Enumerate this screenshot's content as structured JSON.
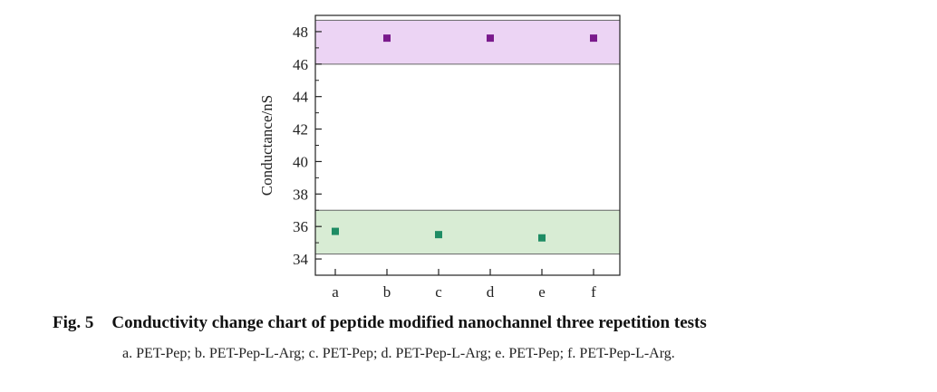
{
  "figure": {
    "number": "Fig. 5",
    "title": "Conductivity change chart of peptide modified nanochannel three repetition tests",
    "caption": "a. PET-Pep; b. PET-Pep-L-Arg; c. PET-Pep; d. PET-Pep-L-Arg; e. PET-Pep; f. PET-Pep-L-Arg."
  },
  "chart_data": {
    "type": "scatter",
    "title": "",
    "xlabel": "",
    "ylabel": "Conductance/nS",
    "categories": [
      "a",
      "b",
      "c",
      "d",
      "e",
      "f"
    ],
    "ylim": [
      33,
      49
    ],
    "yticks": [
      34,
      36,
      38,
      40,
      42,
      44,
      46,
      48
    ],
    "grid": false,
    "legend": "none",
    "bands": [
      {
        "y0": 34.3,
        "y1": 37.0,
        "color": "#d8ecd4",
        "edge": "#666666"
      },
      {
        "y0": 46.0,
        "y1": 48.7,
        "color": "#ecd4f4",
        "edge": "#666666"
      }
    ],
    "points": [
      {
        "x": "a",
        "y": 35.7,
        "color": "#1e8c64"
      },
      {
        "x": "b",
        "y": 47.6,
        "color": "#7a1a8c"
      },
      {
        "x": "c",
        "y": 35.5,
        "color": "#1e8c64"
      },
      {
        "x": "d",
        "y": 47.6,
        "color": "#7a1a8c"
      },
      {
        "x": "e",
        "y": 35.3,
        "color": "#1e8c64"
      },
      {
        "x": "f",
        "y": 47.6,
        "color": "#7a1a8c"
      }
    ]
  }
}
